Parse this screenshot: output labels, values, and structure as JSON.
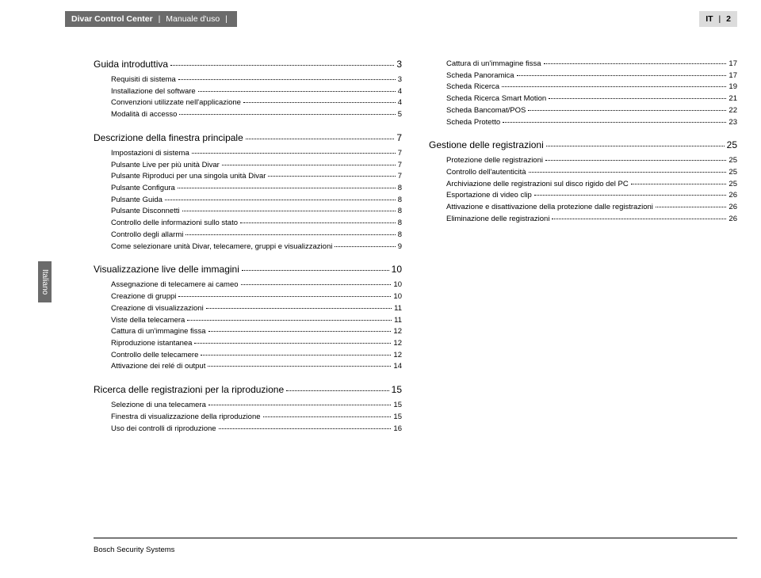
{
  "header": {
    "product": "Divar Control Center",
    "subtitle": "Manuale d'uso",
    "lang": "IT",
    "page": "2"
  },
  "sideTab": "Italiano",
  "footer": "Bosch Security Systems",
  "leftCol": [
    {
      "type": "section",
      "label": "Guida introduttiva",
      "page": "3"
    },
    {
      "type": "item",
      "label": "Requisiti di sistema",
      "page": "3"
    },
    {
      "type": "item",
      "label": "Installazione del software",
      "page": "4"
    },
    {
      "type": "item",
      "label": "Convenzioni utilizzate nell'applicazione",
      "page": "4"
    },
    {
      "type": "item",
      "label": "Modalità di accesso",
      "page": "5"
    },
    {
      "type": "section",
      "label": "Descrizione della finestra principale",
      "page": "7"
    },
    {
      "type": "item",
      "label": "Impostazioni di sistema",
      "page": "7"
    },
    {
      "type": "item",
      "label": "Pulsante Live per più unità Divar",
      "page": "7"
    },
    {
      "type": "item",
      "label": "Pulsante Riproduci per una singola unità Divar",
      "page": "7"
    },
    {
      "type": "item",
      "label": "Pulsante Configura",
      "page": "8"
    },
    {
      "type": "item",
      "label": "Pulsante Guida",
      "page": "8"
    },
    {
      "type": "item",
      "label": "Pulsante Disconnetti",
      "page": "8"
    },
    {
      "type": "item",
      "label": "Controllo delle informazioni sullo stato",
      "page": "8"
    },
    {
      "type": "item",
      "label": "Controllo degli allarmi",
      "page": "8"
    },
    {
      "type": "item",
      "label": "Come selezionare unità Divar, telecamere, gruppi e visualizzazioni",
      "page": "9"
    },
    {
      "type": "section",
      "label": "Visualizzazione live delle immagini",
      "page": "10"
    },
    {
      "type": "item",
      "label": "Assegnazione di telecamere ai cameo",
      "page": "10"
    },
    {
      "type": "item",
      "label": "Creazione di gruppi",
      "page": "10"
    },
    {
      "type": "item",
      "label": "Creazione di visualizzazioni",
      "page": "11"
    },
    {
      "type": "item",
      "label": "Viste della telecamera",
      "page": "11"
    },
    {
      "type": "item",
      "label": "Cattura di un'immagine fissa",
      "page": "12"
    },
    {
      "type": "item",
      "label": "Riproduzione istantanea",
      "page": "12"
    },
    {
      "type": "item",
      "label": "Controllo delle telecamere",
      "page": "12"
    },
    {
      "type": "item",
      "label": "Attivazione dei relé di output",
      "page": "14"
    },
    {
      "type": "section",
      "label": "Ricerca delle registrazioni per la riproduzione",
      "page": "15"
    },
    {
      "type": "item",
      "label": "Selezione di una telecamera",
      "page": "15"
    },
    {
      "type": "item",
      "label": "Finestra di visualizzazione della riproduzione",
      "page": "15"
    },
    {
      "type": "item",
      "label": "Uso dei controlli di riproduzione",
      "page": "16"
    }
  ],
  "rightCol": [
    {
      "type": "item",
      "label": "Cattura di un'immagine fissa",
      "page": "17"
    },
    {
      "type": "item",
      "label": "Scheda Panoramica",
      "page": "17"
    },
    {
      "type": "item",
      "label": "Scheda Ricerca",
      "page": "19"
    },
    {
      "type": "item",
      "label": "Scheda Ricerca Smart Motion",
      "page": "21"
    },
    {
      "type": "item",
      "label": "Scheda Bancomat/POS",
      "page": "22"
    },
    {
      "type": "item",
      "label": "Scheda Protetto",
      "page": "23"
    },
    {
      "type": "section",
      "label": "Gestione delle registrazioni",
      "page": "25"
    },
    {
      "type": "item",
      "label": "Protezione delle registrazioni",
      "page": "25"
    },
    {
      "type": "item",
      "label": "Controllo dell'autenticità",
      "page": "25"
    },
    {
      "type": "item",
      "label": "Archiviazione delle registrazioni sul disco rigido del PC",
      "page": "25"
    },
    {
      "type": "item",
      "label": "Esportazione di video clip",
      "page": "26"
    },
    {
      "type": "item",
      "label": "Attivazione e disattivazione della protezione dalle registrazioni",
      "page": "26"
    },
    {
      "type": "item",
      "label": "Eliminazione delle registrazioni",
      "page": "26"
    }
  ]
}
